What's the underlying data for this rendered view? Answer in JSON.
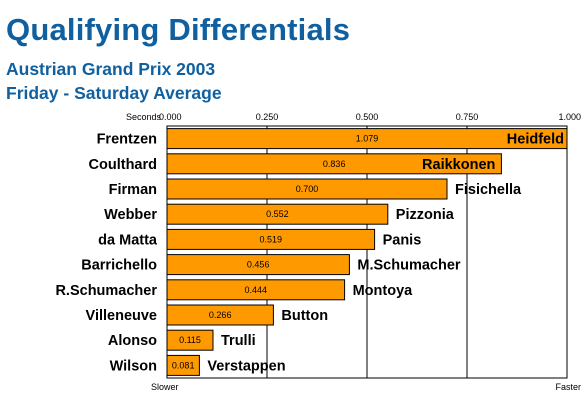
{
  "title": "Qualifying Differentials",
  "subtitle_1": "Austrian Grand Prix 2003",
  "subtitle_2": "Friday - Saturday Average",
  "chart_data": {
    "type": "bar",
    "orientation": "horizontal",
    "axis_unit_label": "Seconds",
    "xlim": [
      0,
      1.0
    ],
    "ticks": [
      "0.000",
      "0.250",
      "0.500",
      "0.750",
      "1.000"
    ],
    "tick_values": [
      0,
      0.25,
      0.5,
      0.75,
      1.0
    ],
    "slower_label": "Slower",
    "faster_label": "Faster",
    "grid": true,
    "bar_color": "#ff9900",
    "bar_stroke": "#000000",
    "categories": [
      "Frentzen",
      "Coulthard",
      "Firman",
      "Webber",
      "da Matta",
      "Barrichello",
      "R.Schumacher",
      "Villeneuve",
      "Alonso",
      "Wilson"
    ],
    "opponents": [
      "Heidfeld",
      "Raikkonen",
      "Fisichella",
      "Pizzonia",
      "Panis",
      "M.Schumacher",
      "Montoya",
      "Button",
      "Trulli",
      "Verstappen"
    ],
    "values": [
      1.079,
      0.836,
      0.7,
      0.552,
      0.519,
      0.456,
      0.444,
      0.266,
      0.115,
      0.081
    ],
    "value_labels": [
      "1.079",
      "0.836",
      "0.700",
      "0.552",
      "0.519",
      "0.456",
      "0.444",
      "0.266",
      "0.115",
      "0.081"
    ]
  }
}
